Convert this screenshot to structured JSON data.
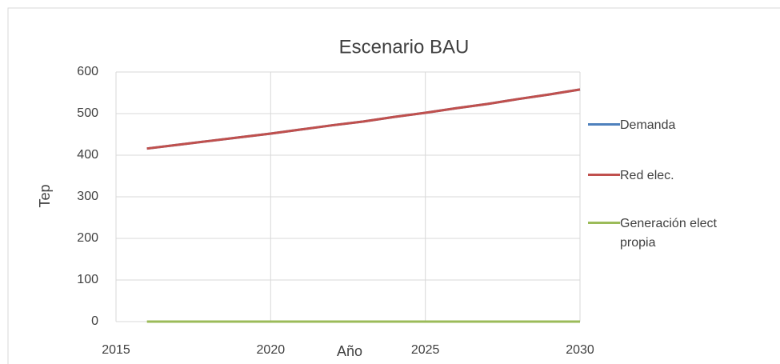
{
  "chart_data": {
    "type": "line",
    "title": "Escenario BAU",
    "x_label": "Año",
    "y_label": "Tep",
    "x": [
      2016,
      2017,
      2018,
      2019,
      2020,
      2021,
      2022,
      2023,
      2024,
      2025,
      2026,
      2027,
      2028,
      2029,
      2030
    ],
    "series": [
      {
        "name": "Demanda",
        "color": "#4f81bd",
        "values": [
          416,
          425,
          434,
          443,
          452,
          462,
          472,
          481,
          492,
          502,
          513,
          523,
          535,
          546,
          558
        ]
      },
      {
        "name": "Red elec.",
        "color": "#c0504d",
        "values": [
          416,
          425,
          434,
          443,
          452,
          462,
          472,
          481,
          492,
          502,
          513,
          523,
          535,
          546,
          558
        ]
      },
      {
        "name": "Generación elect propia",
        "color": "#9bbb59",
        "values": [
          0,
          0,
          0,
          0,
          0,
          0,
          0,
          0,
          0,
          0,
          0,
          0,
          0,
          0,
          0
        ]
      }
    ],
    "xlim": [
      2015,
      2030
    ],
    "xticks": [
      2015,
      2020,
      2025,
      2030
    ],
    "ylim": [
      0,
      600
    ],
    "yticks": [
      0,
      100,
      200,
      300,
      400,
      500,
      600
    ],
    "grid": true
  }
}
